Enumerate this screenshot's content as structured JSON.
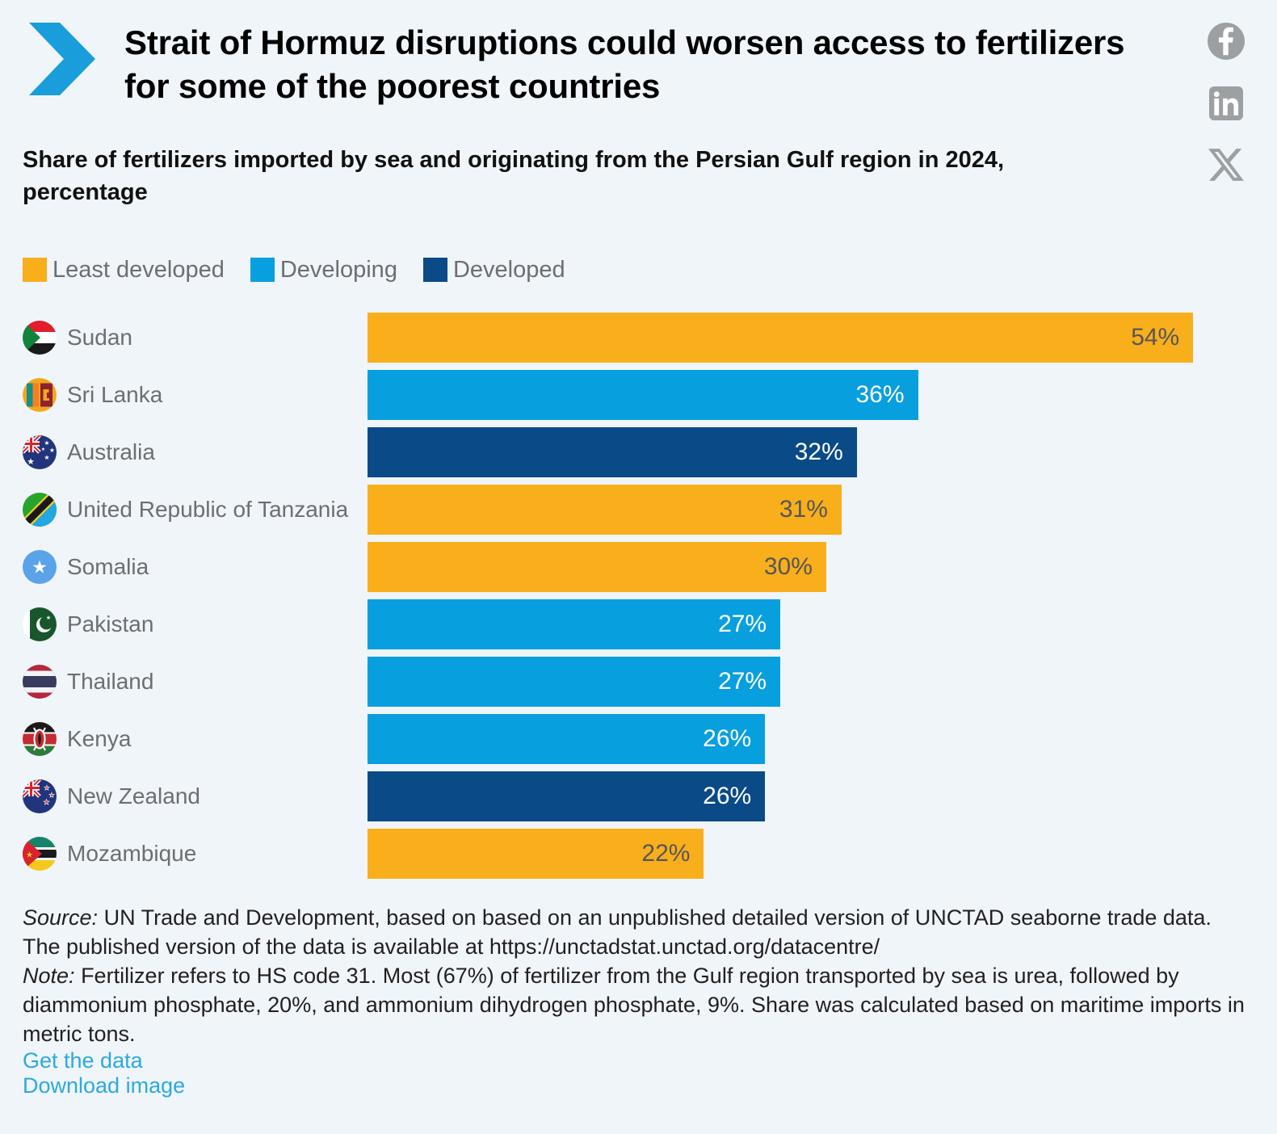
{
  "header": {
    "title": "Strait of Hormuz disruptions could worsen access to fertilizers for some of the poorest countries",
    "subtitle": "Share of fertilizers imported by sea and originating from the Persian Gulf region in 2024, percentage",
    "social_icons": [
      "facebook-icon",
      "linkedin-icon",
      "x-icon"
    ]
  },
  "groups": {
    "least_developed": {
      "label": "Least developed",
      "color": "#F9AE1B",
      "value_text_color": "#55565A"
    },
    "developing": {
      "label": "Developing",
      "color": "#089FDF",
      "value_text_color": "#FFFFFF"
    },
    "developed": {
      "label": "Developed",
      "color": "#0A4A87",
      "value_text_color": "#FFFFFF"
    }
  },
  "legend_order": [
    "least_developed",
    "developing",
    "developed"
  ],
  "chart_data": {
    "type": "bar",
    "orientation": "horizontal",
    "title": "Strait of Hormuz disruptions could worsen access to fertilizers for some of the poorest countries",
    "subtitle": "Share of fertilizers imported by sea and originating from the Persian Gulf region in 2024, percentage",
    "unit": "%",
    "legend": [
      "Least developed",
      "Developing",
      "Developed"
    ],
    "legend_position": "top",
    "grid": false,
    "axis_scale_max": 58,
    "categories": [
      "Sudan",
      "Sri Lanka",
      "Australia",
      "United Republic of Tanzania",
      "Somalia",
      "Pakistan",
      "Thailand",
      "Kenya",
      "New Zealand",
      "Mozambique"
    ],
    "values": [
      54,
      36,
      32,
      31,
      30,
      27,
      27,
      26,
      26,
      22
    ],
    "rows": [
      {
        "country": "Sudan",
        "flag": "sudan-flag-icon",
        "value": 54,
        "value_label": "54%",
        "group": "least_developed"
      },
      {
        "country": "Sri Lanka",
        "flag": "sri-lanka-flag-icon",
        "value": 36,
        "value_label": "36%",
        "group": "developing"
      },
      {
        "country": "Australia",
        "flag": "australia-flag-icon",
        "value": 32,
        "value_label": "32%",
        "group": "developed"
      },
      {
        "country": "United Republic of Tanzania",
        "flag": "tanzania-flag-icon",
        "value": 31,
        "value_label": "31%",
        "group": "least_developed"
      },
      {
        "country": "Somalia",
        "flag": "somalia-flag-icon",
        "value": 30,
        "value_label": "30%",
        "group": "least_developed"
      },
      {
        "country": "Pakistan",
        "flag": "pakistan-flag-icon",
        "value": 27,
        "value_label": "27%",
        "group": "developing"
      },
      {
        "country": "Thailand",
        "flag": "thailand-flag-icon",
        "value": 27,
        "value_label": "27%",
        "group": "developing"
      },
      {
        "country": "Kenya",
        "flag": "kenya-flag-icon",
        "value": 26,
        "value_label": "26%",
        "group": "developing"
      },
      {
        "country": "New Zealand",
        "flag": "new-zealand-flag-icon",
        "value": 26,
        "value_label": "26%",
        "group": "developed"
      },
      {
        "country": "Mozambique",
        "flag": "mozambique-flag-icon",
        "value": 22,
        "value_label": "22%",
        "group": "least_developed"
      }
    ]
  },
  "footer": {
    "source_label": "Source:",
    "source_text": "UN Trade and Development, based on based on an unpublished detailed version of UNCTAD seaborne trade data. The published version of the data is available at https://unctadstat.unctad.org/datacentre/",
    "note_label": "Note:",
    "note_text": "Fertilizer refers to HS code 31. Most (67%) of fertilizer from the Gulf region transported by sea is urea, followed by diammonium phosphate, 20%, and ammonium dihydrogen phosphate, 9%. Share was calculated based on maritime imports in metric tons.",
    "links": [
      "Get the data",
      "Download image"
    ]
  },
  "colors": {
    "background": "#EFF5F9",
    "chevron": "#199DDB",
    "link": "#2EA8DF",
    "country_label": "#6D6E71",
    "social_icon": "#9DA0A3"
  }
}
